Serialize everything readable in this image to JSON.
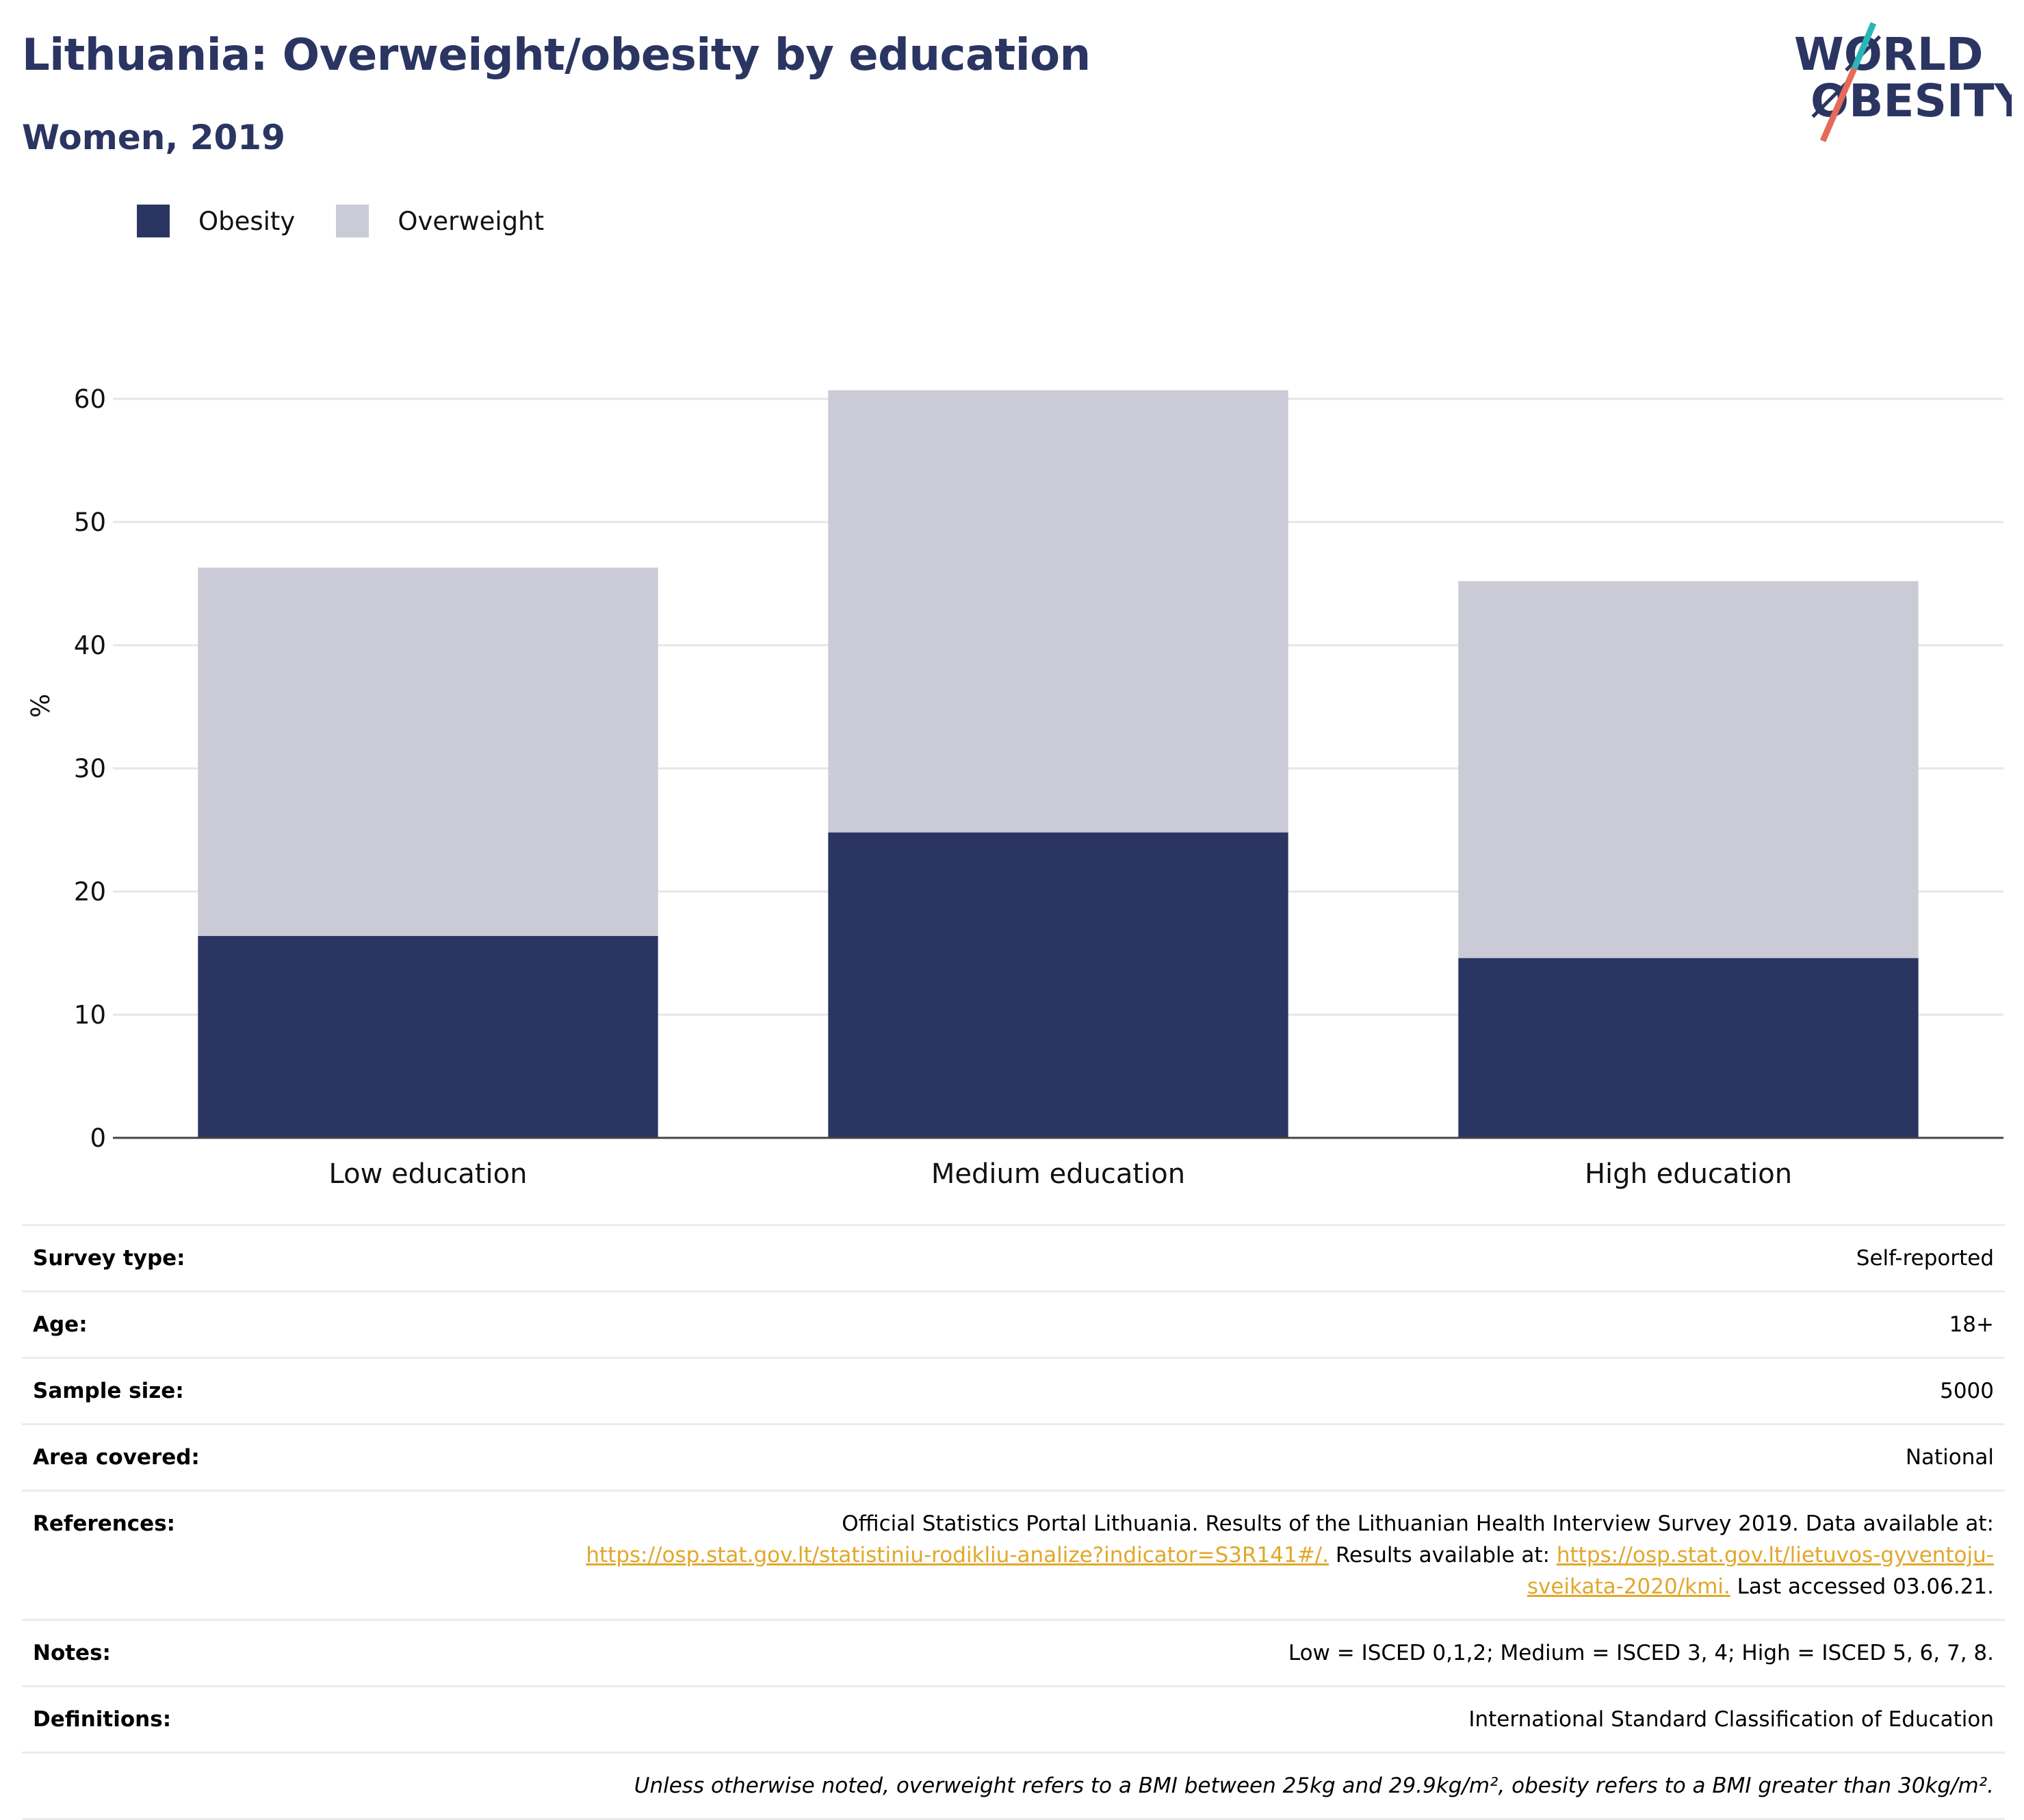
{
  "header": {
    "title": "Lithuania: Overweight/obesity by education",
    "subtitle": "Women, 2019"
  },
  "logo": {
    "line1": "WØRLD",
    "line2": "ØBESITY",
    "text_color": "#2a3562",
    "slash_colors": [
      "#2bb6b6",
      "#e56a5a"
    ]
  },
  "legend": [
    {
      "label": "Obesity",
      "color": "#2a3562"
    },
    {
      "label": "Overweight",
      "color": "#cacbd6"
    }
  ],
  "chart_data": {
    "type": "bar",
    "stacked": true,
    "categories": [
      "Low education",
      "Medium education",
      "High education"
    ],
    "series": [
      {
        "name": "Obesity",
        "color": "#2a3562",
        "values": [
          16.4,
          24.8,
          14.6
        ]
      },
      {
        "name": "Overweight",
        "color": "#cacbd6",
        "values": [
          29.9,
          35.9,
          30.6
        ]
      }
    ],
    "ylabel": "%",
    "ylim": [
      0,
      60
    ],
    "yticks": [
      0,
      10,
      20,
      30,
      40,
      50,
      60
    ],
    "grid": true,
    "legend_position": "top-left"
  },
  "meta": {
    "survey_type": {
      "label": "Survey type:",
      "value": "Self-reported"
    },
    "age": {
      "label": "Age:",
      "value": "18+"
    },
    "sample_size": {
      "label": "Sample size:",
      "value": "5000"
    },
    "area": {
      "label": "Area covered:",
      "value": "National"
    },
    "references": {
      "label": "References:",
      "text1": "Official Statistics Portal Lithuania. Results of the Lithuanian Health Interview Survey 2019. Data available at:",
      "link1": "https://osp.stat.gov.lt/statistiniu-rodikliu-analize?indicator=S3R141#/.",
      "text2": " Results available at: ",
      "link2": "https://osp.stat.gov.lt/lietuvos-gyventoju-sveikata-2020/kmi.",
      "text3": " Last accessed 03.06.21."
    },
    "notes": {
      "label": "Notes:",
      "value": "Low = ISCED 0,1,2; Medium = ISCED 3, 4; High = ISCED 5, 6, 7, 8."
    },
    "definitions": {
      "label": "Definitions:",
      "value": "International Standard Classification of Education"
    },
    "footnote": "Unless otherwise noted, overweight refers to a BMI between 25kg and 29.9kg/m², obesity refers to a BMI greater than 30kg/m²."
  }
}
